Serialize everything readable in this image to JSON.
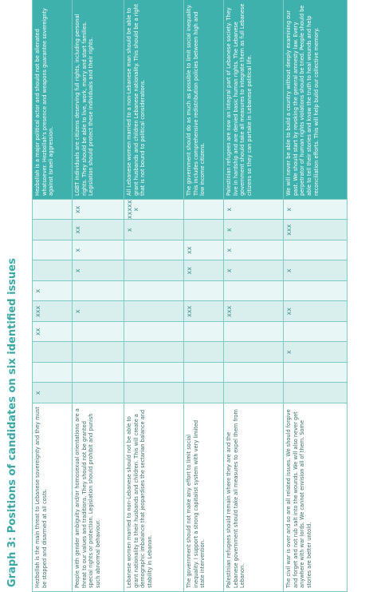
{
  "header": {
    "title": "Graph 3: Positions of candidates on six identified issues"
  },
  "table": {
    "rows": [
      {
        "left": "Hezbollah is the main threat to Lebanese sovereignty and they must be stopped and disarmed at all costs.",
        "marks": [
          "x",
          null,
          null,
          "xx",
          "xxx",
          "x",
          null,
          null,
          null,
          null
        ],
        "right": "Hezbollah is a major political actor and should not be alienated whatsoever. Hezbollah's presence and weapons guarantee sovereignty against Israeli aggression."
      },
      {
        "left": "People with gender ambiguity and/or homosexual orientations are a threat to our values and traditions. They should not be granted special rights or protection. Legislation should prohibit and punish such abnormal behaviour.",
        "marks": [
          null,
          null,
          null,
          null,
          "x",
          null,
          "x",
          "x",
          "xx",
          "xx"
        ],
        "right": "LGBT individuals are citizens deserving full rights, including personal rights. They should be able to live, work, marry and start families. Legislation should protect these individuals and their rights."
      },
      {
        "left": "Lebanese women married to non-Lebanese should not be able to grant nationality to their husbands and children. This will create a demographic imbalance that jeopardises the sectarian balance and stability in Lebanon.",
        "marks": [
          null,
          null,
          null,
          null,
          null,
          null,
          null,
          null,
          "x",
          "xxxxxx"
        ],
        "right": "All Lebanese women married to a non-Lebanese man should be able to grant husbands and children Lebanese nationality. This should be a right that is not bound to political considerations."
      },
      {
        "left": "The government should not make any effort to limit social inequality. I support a strong capitalist system with very limited state intervention.",
        "marks": [
          null,
          null,
          null,
          null,
          "xxx",
          null,
          "xx",
          "xx",
          null,
          null
        ],
        "right": "The government should do as much as possible to limit social inequality. This includes comprehensive redistribution policies between high and low income citizens."
      },
      {
        "left": "Palestinian refugees should remain where they are and the Lebanese government should take all measures to expel them from Lebanon.",
        "marks": [
          null,
          null,
          null,
          null,
          "xxx",
          null,
          "x",
          "x",
          "x",
          "x"
        ],
        "right": "Palestinian refugees are now an integral part of Lebanese society. They live in hardship and are denied basic human rights. The Lebanese government should take all measures to integrate them as full Lebanese citizens so they can partake in Lebanese political life."
      },
      {
        "left": "The civil war is over and so are all related issues. We should forgive and forget and not rub salt into the wounds. We will also never get anywhere with war lords. We cannot envision all of them. Some stories are better untold.",
        "marks": [
          null,
          null,
          "x",
          null,
          "xx",
          null,
          "x",
          null,
          "xxx",
          "x"
        ],
        "right": "We will never be able to build a country without deeply examining our past. We should start by revoking the general amnesty law. Every perpetrator of human rights violations should be tried. People should be able to tell their stories and know the truth to heal wounds and help reconciliation efforts. This will help build our collective memory."
      }
    ]
  }
}
